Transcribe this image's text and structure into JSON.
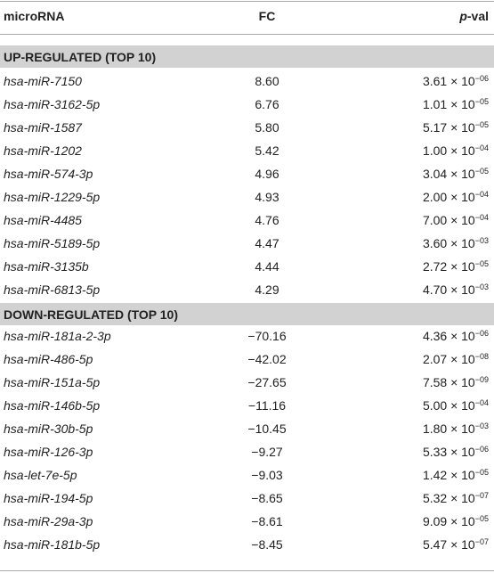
{
  "header": {
    "microrna": "microRNA",
    "fc": "FC",
    "pval": {
      "italic": "p",
      "text": "-val"
    }
  },
  "sections": [
    {
      "title": "UP-REGULATED (TOP 10)",
      "rows": [
        {
          "name": "hsa-miR-7150",
          "fc": "8.60",
          "pval": {
            "mantissa": "3.61 × 10",
            "exponent": "−06"
          }
        },
        {
          "name": "hsa-miR-3162-5p",
          "fc": "6.76",
          "pval": {
            "mantissa": "1.01 × 10",
            "exponent": "−05"
          }
        },
        {
          "name": "hsa-miR-1587",
          "fc": "5.80",
          "pval": {
            "mantissa": "5.17 × 10",
            "exponent": "−05"
          }
        },
        {
          "name": "hsa-miR-1202",
          "fc": "5.42",
          "pval": {
            "mantissa": "1.00 × 10",
            "exponent": "−04"
          }
        },
        {
          "name": "hsa-miR-574-3p",
          "fc": "4.96",
          "pval": {
            "mantissa": "3.04 × 10",
            "exponent": "−05"
          }
        },
        {
          "name": "hsa-miR-1229-5p",
          "fc": "4.93",
          "pval": {
            "mantissa": "2.00 × 10",
            "exponent": "−04"
          }
        },
        {
          "name": "hsa-miR-4485",
          "fc": "4.76",
          "pval": {
            "mantissa": "7.00 × 10",
            "exponent": "−04"
          }
        },
        {
          "name": "hsa-miR-5189-5p",
          "fc": "4.47",
          "pval": {
            "mantissa": "3.60 × 10",
            "exponent": "−03"
          }
        },
        {
          "name": "hsa-miR-3135b",
          "fc": "4.44",
          "pval": {
            "mantissa": "2.72 × 10",
            "exponent": "−05"
          }
        },
        {
          "name": "hsa-miR-6813-5p",
          "fc": "4.29",
          "pval": {
            "mantissa": "4.70 × 10",
            "exponent": "−03"
          }
        }
      ]
    },
    {
      "title": "DOWN-REGULATED (TOP 10)",
      "rows": [
        {
          "name": "hsa-miR-181a-2-3p",
          "fc": "−70.16",
          "pval": {
            "mantissa": "4.36 × 10",
            "exponent": "−06"
          }
        },
        {
          "name": "hsa-miR-486-5p",
          "fc": "−42.02",
          "pval": {
            "mantissa": "2.07 × 10",
            "exponent": "−08"
          }
        },
        {
          "name": "hsa-miR-151a-5p",
          "fc": "−27.65",
          "pval": {
            "mantissa": "7.58 × 10",
            "exponent": "−09"
          }
        },
        {
          "name": "hsa-miR-146b-5p",
          "fc": "−11.16",
          "pval": {
            "mantissa": "5.00 × 10",
            "exponent": "−04"
          }
        },
        {
          "name": "hsa-miR-30b-5p",
          "fc": "−10.45",
          "pval": {
            "mantissa": "1.80 × 10",
            "exponent": "−03"
          }
        },
        {
          "name": "hsa-miR-126-3p",
          "fc": "−9.27",
          "pval": {
            "mantissa": "5.33 × 10",
            "exponent": "−06"
          }
        },
        {
          "name": "hsa-let-7e-5p",
          "fc": "−9.03",
          "pval": {
            "mantissa": "1.42 × 10",
            "exponent": "−05"
          }
        },
        {
          "name": "hsa-miR-194-5p",
          "fc": "−8.65",
          "pval": {
            "mantissa": "5.32 × 10",
            "exponent": "−07"
          }
        },
        {
          "name": "hsa-miR-29a-3p",
          "fc": "−8.61",
          "pval": {
            "mantissa": "9.09 × 10",
            "exponent": "−05"
          }
        },
        {
          "name": "hsa-miR-181b-5p",
          "fc": "−8.45",
          "pval": {
            "mantissa": "5.47 × 10",
            "exponent": "−07"
          }
        }
      ]
    }
  ]
}
